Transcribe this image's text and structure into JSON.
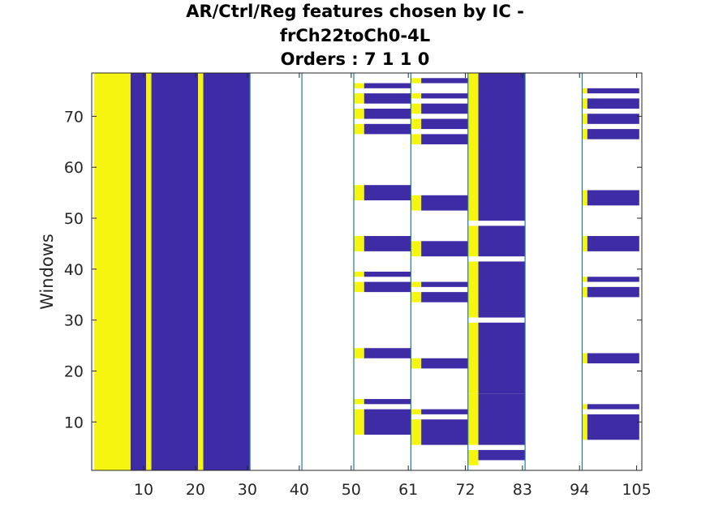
{
  "chart_data": {
    "type": "heatmap",
    "title_lines": [
      "AR/Ctrl/Reg features chosen by IC -",
      "frCh22toCh0-4L",
      "Orders : 7 1 1 0"
    ],
    "xlabel": "",
    "ylabel": "Windows",
    "xlim": [
      0,
      106
    ],
    "ylim": [
      0.5,
      78.5
    ],
    "xticks": [
      10,
      20,
      30,
      40,
      50,
      61,
      72,
      83,
      94,
      105
    ],
    "yticks": [
      10,
      20,
      30,
      40,
      50,
      60,
      70
    ],
    "group_separators": [
      30.5,
      40.5,
      50.5,
      61.5,
      72.5,
      83.5,
      94.5
    ],
    "colors": {
      "selected": "#3d2ca6",
      "highlight": "#f5f50f",
      "empty": "#ffffff",
      "separator": "#1f77b4"
    },
    "value_encoding": {
      "1": "selected",
      "2": "highlight"
    },
    "column_runs": [
      {
        "x": [
          0.5,
          7.5
        ],
        "rows": [
          [
            1,
            78
          ]
        ],
        "value": 2
      },
      {
        "x": [
          7.5,
          10.5
        ],
        "rows": [
          [
            1,
            78
          ]
        ],
        "value": 1
      },
      {
        "x": [
          10.5,
          11.5
        ],
        "rows": [
          [
            1,
            78
          ]
        ],
        "value": 2
      },
      {
        "x": [
          11.5,
          20.5
        ],
        "rows": [
          [
            1,
            78
          ]
        ],
        "value": 1
      },
      {
        "x": [
          20.5,
          21.5
        ],
        "rows": [
          [
            1,
            78
          ]
        ],
        "value": 2
      },
      {
        "x": [
          21.5,
          30.5
        ],
        "rows": [
          [
            1,
            78
          ]
        ],
        "value": 1
      },
      {
        "x": [
          50.5,
          52.5
        ],
        "rows": [
          [
            8,
            12
          ],
          [
            14,
            14
          ],
          [
            23,
            24
          ],
          [
            36,
            37
          ],
          [
            39,
            39
          ],
          [
            44,
            46
          ],
          [
            54,
            56
          ],
          [
            67,
            68
          ],
          [
            70,
            71
          ],
          [
            73,
            74
          ],
          [
            76,
            76
          ]
        ],
        "value": 2
      },
      {
        "x": [
          52.5,
          61.5
        ],
        "rows": [
          [
            8,
            12
          ],
          [
            14,
            14
          ],
          [
            23,
            24
          ],
          [
            36,
            37
          ],
          [
            39,
            39
          ],
          [
            44,
            46
          ],
          [
            54,
            56
          ],
          [
            67,
            68
          ],
          [
            70,
            71
          ],
          [
            73,
            74
          ],
          [
            76,
            76
          ]
        ],
        "value": 1
      },
      {
        "x": [
          61.5,
          63.5
        ],
        "rows": [
          [
            6,
            10
          ],
          [
            12,
            12
          ],
          [
            21,
            22
          ],
          [
            34,
            35
          ],
          [
            37,
            37
          ],
          [
            43,
            45
          ],
          [
            52,
            54
          ],
          [
            65,
            66
          ],
          [
            68,
            69
          ],
          [
            71,
            72
          ],
          [
            74,
            74
          ],
          [
            77,
            77
          ]
        ],
        "value": 2
      },
      {
        "x": [
          63.5,
          72.5
        ],
        "rows": [
          [
            6,
            10
          ],
          [
            12,
            12
          ],
          [
            21,
            22
          ],
          [
            34,
            35
          ],
          [
            37,
            37
          ],
          [
            43,
            45
          ],
          [
            52,
            54
          ],
          [
            65,
            66
          ],
          [
            68,
            69
          ],
          [
            71,
            72
          ],
          [
            74,
            74
          ],
          [
            77,
            77
          ]
        ],
        "value": 1
      },
      {
        "x": [
          72.5,
          74.5
        ],
        "rows": [
          [
            2,
            4
          ],
          [
            6,
            15
          ],
          [
            16,
            29
          ],
          [
            31,
            41
          ],
          [
            43,
            48
          ],
          [
            50,
            78
          ]
        ],
        "value": 2
      },
      {
        "x": [
          74.5,
          83.5
        ],
        "rows": [
          [
            3,
            4
          ],
          [
            6,
            15
          ],
          [
            16,
            29
          ],
          [
            31,
            41
          ],
          [
            43,
            48
          ],
          [
            50,
            78
          ]
        ],
        "value": 1
      },
      {
        "x": [
          94.5,
          95.5
        ],
        "rows": [
          [
            7,
            11
          ],
          [
            13,
            13
          ],
          [
            22,
            23
          ],
          [
            35,
            36
          ],
          [
            38,
            38
          ],
          [
            44,
            46
          ],
          [
            53,
            55
          ],
          [
            66,
            67
          ],
          [
            69,
            70
          ],
          [
            72,
            73
          ],
          [
            75,
            75
          ]
        ],
        "value": 2
      },
      {
        "x": [
          95.5,
          105.5
        ],
        "rows": [
          [
            7,
            11
          ],
          [
            13,
            13
          ],
          [
            22,
            23
          ],
          [
            35,
            36
          ],
          [
            38,
            38
          ],
          [
            44,
            46
          ],
          [
            53,
            55
          ],
          [
            66,
            67
          ],
          [
            69,
            70
          ],
          [
            72,
            73
          ],
          [
            75,
            75
          ]
        ],
        "value": 1
      }
    ]
  }
}
